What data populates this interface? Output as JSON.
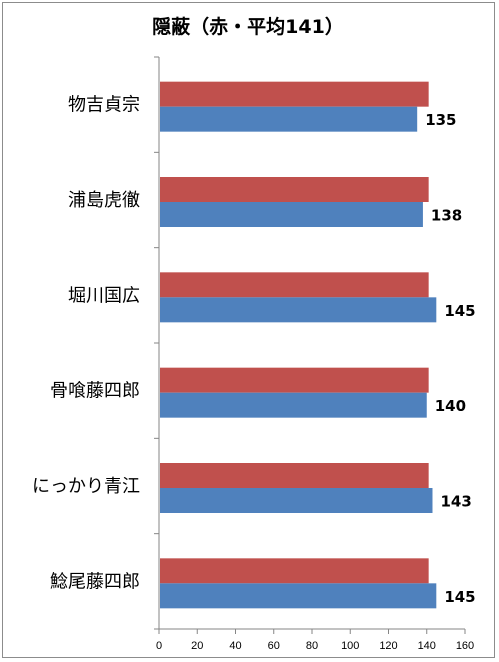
{
  "chart_data": {
    "type": "bar",
    "orientation": "horizontal",
    "title": "隠蔽（赤・平均141）",
    "categories": [
      "物吉貞宗",
      "浦島虎徹",
      "堀川国広",
      "骨喰藤四郎",
      "にっかり青江",
      "鯰尾藤四郎"
    ],
    "series": [
      {
        "color": "#c0504d",
        "values": [
          141,
          141,
          141,
          141,
          141,
          141
        ]
      },
      {
        "color": "#4f81bd",
        "values": [
          135,
          138,
          145,
          140,
          143,
          145
        ]
      }
    ],
    "data_labels": [
      "135",
      "138",
      "145",
      "140",
      "143",
      "145"
    ],
    "xlim": [
      0,
      160
    ],
    "xticks": [
      "0",
      "20",
      "40",
      "60",
      "80",
      "100",
      "120",
      "140",
      "160"
    ],
    "grid": false,
    "legend": "none"
  }
}
